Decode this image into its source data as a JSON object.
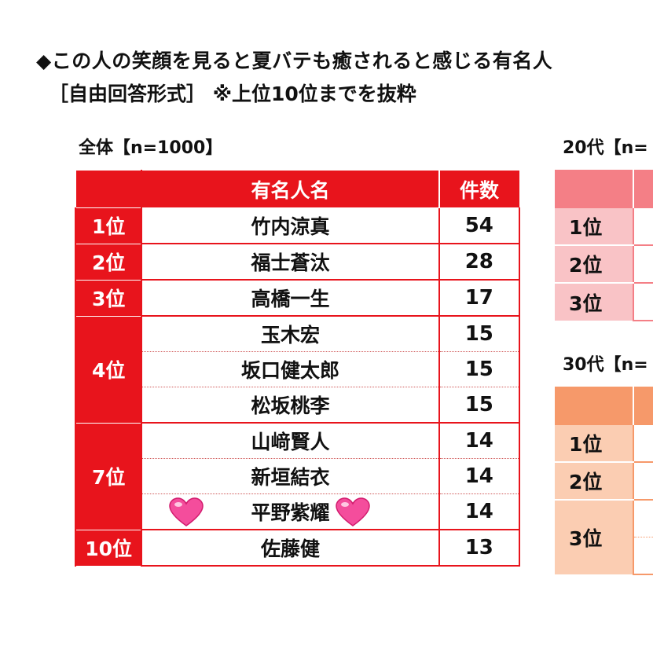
{
  "title": "◆この人の笑顔を見ると夏バテも癒されると感じる有名人",
  "subtitle": "［自由回答形式］ ※上位10位までを抜粋",
  "colors": {
    "main_red": "#e8141c",
    "pink": "#f47f86",
    "orange": "#f6996a",
    "pink_cell": "#f9c3c6",
    "orange_cell": "#fbcdb2"
  },
  "chart_data": [
    {
      "type": "table",
      "title": "全体【n=1000】",
      "columns": [
        "",
        "有名人名",
        "件数"
      ],
      "rows": [
        {
          "rank": "1位",
          "name": "竹内涼真",
          "count": 54
        },
        {
          "rank": "2位",
          "name": "福士蒼汰",
          "count": 28
        },
        {
          "rank": "3位",
          "name": "高橋一生",
          "count": 17
        },
        {
          "rank": "4位",
          "name": "玉木宏",
          "count": 15
        },
        {
          "rank": "",
          "name": "坂口健太郎",
          "count": 15
        },
        {
          "rank": "",
          "name": "松坂桃李",
          "count": 15
        },
        {
          "rank": "7位",
          "name": "山﨑賢人",
          "count": 14
        },
        {
          "rank": "",
          "name": "新垣結衣",
          "count": 14
        },
        {
          "rank": "",
          "name": "平野紫耀",
          "count": 14
        },
        {
          "rank": "10位",
          "name": "佐藤健",
          "count": 13
        }
      ]
    },
    {
      "type": "table",
      "title": "20代【n=",
      "rows": [
        {
          "rank": "1位"
        },
        {
          "rank": "2位"
        },
        {
          "rank": "3位"
        }
      ]
    },
    {
      "type": "table",
      "title": "30代【n=",
      "rows": [
        {
          "rank": "1位"
        },
        {
          "rank": "2位"
        },
        {
          "rank": "3位"
        }
      ]
    }
  ],
  "decor": {
    "hearts": [
      "heart-icon",
      "heart-icon"
    ]
  }
}
